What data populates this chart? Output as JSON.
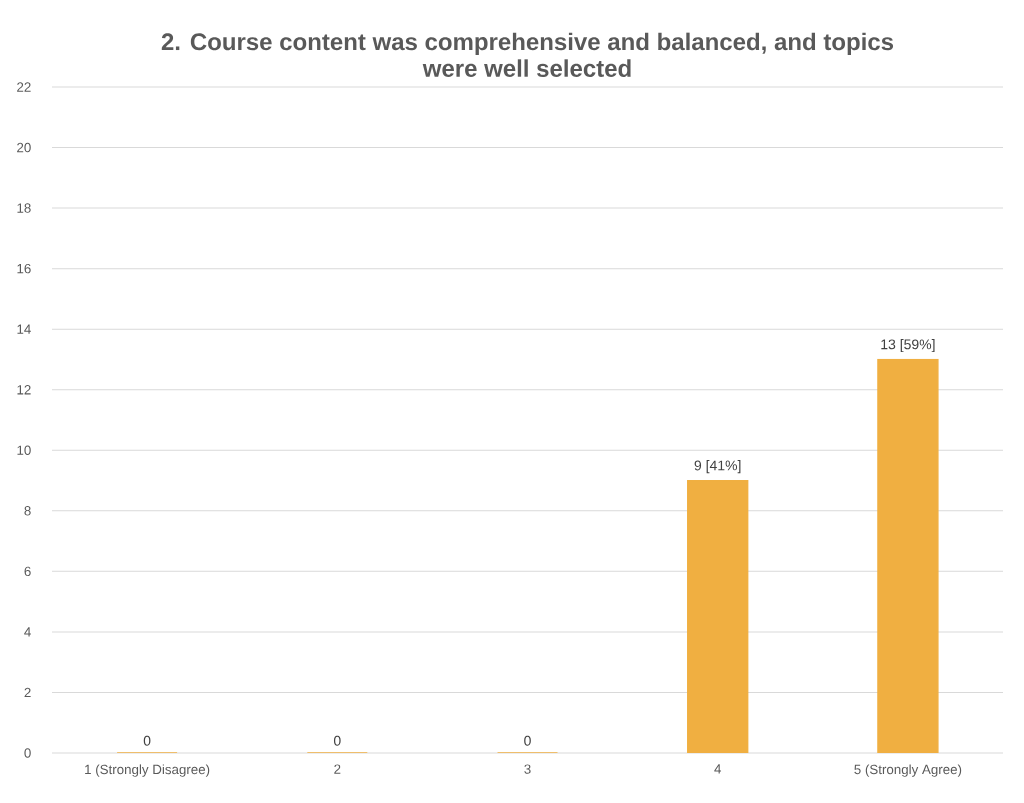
{
  "chart_data": {
    "type": "bar",
    "title": "2. Course content was comprehensive and balanced, and topics were well selected",
    "categories": [
      "1 (Strongly Disagree)",
      "2",
      "3",
      "4",
      "5 (Strongly Agree)"
    ],
    "values": [
      0,
      0,
      0,
      9,
      13
    ],
    "value_labels": [
      "0",
      "0",
      "0",
      "9 [41%]",
      "13 [59%]"
    ],
    "color": "#f0af41",
    "ylim": [
      0,
      22
    ],
    "yticks": [
      0,
      2,
      4,
      6,
      8,
      10,
      12,
      14,
      16,
      18,
      20,
      22
    ],
    "grid": "y"
  }
}
